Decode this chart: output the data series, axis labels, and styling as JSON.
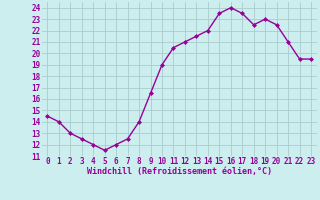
{
  "x": [
    0,
    1,
    2,
    3,
    4,
    5,
    6,
    7,
    8,
    9,
    10,
    11,
    12,
    13,
    14,
    15,
    16,
    17,
    18,
    19,
    20,
    21,
    22,
    23
  ],
  "y": [
    14.5,
    14.0,
    13.0,
    12.5,
    12.0,
    11.5,
    12.0,
    12.5,
    14.0,
    16.5,
    19.0,
    20.5,
    21.0,
    21.5,
    22.0,
    23.5,
    24.0,
    23.5,
    22.5,
    23.0,
    22.5,
    21.0,
    19.5,
    19.5
  ],
  "line_color": "#990099",
  "marker": "D",
  "markersize": 2.0,
  "linewidth": 1.0,
  "bg_color": "#cceeee",
  "grid_color": "#aacccc",
  "xlabel": "Windchill (Refroidissement éolien,°C)",
  "xlabel_color": "#990099",
  "xlabel_fontsize": 6.0,
  "tick_color": "#990099",
  "tick_fontsize": 5.5,
  "ylim": [
    11,
    24.5
  ],
  "yticks": [
    11,
    12,
    13,
    14,
    15,
    16,
    17,
    18,
    19,
    20,
    21,
    22,
    23,
    24
  ],
  "xticks": [
    0,
    1,
    2,
    3,
    4,
    5,
    6,
    7,
    8,
    9,
    10,
    11,
    12,
    13,
    14,
    15,
    16,
    17,
    18,
    19,
    20,
    21,
    22,
    23
  ]
}
